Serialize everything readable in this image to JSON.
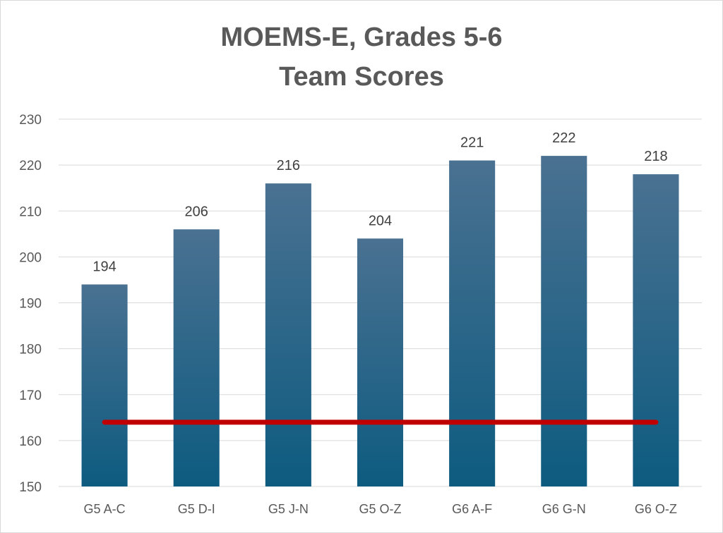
{
  "chart_data": {
    "type": "bar",
    "title_lines": [
      "MOEMS-E, Grades 5-6",
      "Team Scores"
    ],
    "categories": [
      "G5 A-C",
      "G5 D-I",
      "G5 J-N",
      "G5 O-Z",
      "G6 A-F",
      "G6 G-N",
      "G6 O-Z"
    ],
    "values": [
      194,
      206,
      216,
      204,
      221,
      222,
      218
    ],
    "ylim": [
      150,
      230
    ],
    "yticks": [
      150,
      160,
      170,
      180,
      190,
      200,
      210,
      220,
      230
    ],
    "grid": true,
    "legend": "none",
    "reference_line": {
      "value": 164,
      "color": "#c00000"
    },
    "colors": {
      "bar_top": "#4a7191",
      "bar_bottom": "#0d5b80",
      "grid": "#d9d9d9",
      "text": "#595959"
    }
  }
}
